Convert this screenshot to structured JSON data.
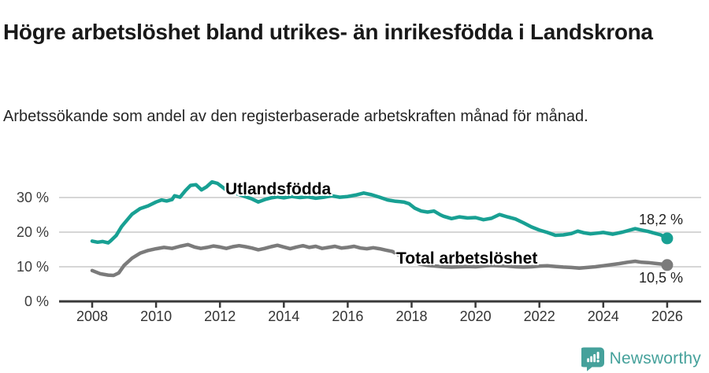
{
  "colors": {
    "series_foreign": "#18a093",
    "series_total": "#7b7b7b",
    "gridline": "#d6d6d6",
    "axis": "#3a3a3a",
    "brand_teal": "#45a19b",
    "title_text": "#191919"
  },
  "footer": {
    "brand": "Newsworthy",
    "logo_icon": "newsworthy-speech-bubble-bar-chart-icon"
  },
  "chart_data": {
    "type": "line",
    "title": "Högre arbetslöshet bland utrikes- än inrikesfödda i Landskrona",
    "subtitle": "Arbetssökande som andel av den registerbaserade arbetskraften månad för månad.",
    "grid": "horizontal-only",
    "xlim": [
      2007.66,
      2026.9
    ],
    "ylim": [
      0,
      36
    ],
    "x_axis": {
      "values": [
        2008,
        2010,
        2012,
        2014,
        2016,
        2018,
        2020,
        2022,
        2024,
        2026
      ],
      "labels": [
        "2008",
        "2010",
        "2012",
        "2014",
        "2016",
        "2018",
        "2020",
        "2022",
        "2024",
        "2026"
      ]
    },
    "y_axis": {
      "values": [
        0,
        10,
        20,
        30
      ],
      "labels": [
        "0 %",
        "10 %",
        "20 %",
        "30 %"
      ]
    },
    "series": [
      {
        "name": "Utlandsfödda",
        "color": "#18a093",
        "end_label": "18,2 %",
        "end_value": 18.2,
        "points": [
          [
            2008.0,
            17.4
          ],
          [
            2008.17,
            17.1
          ],
          [
            2008.33,
            17.3
          ],
          [
            2008.5,
            16.9
          ],
          [
            2008.58,
            17.5
          ],
          [
            2008.75,
            19.0
          ],
          [
            2008.92,
            21.6
          ],
          [
            2009.0,
            22.5
          ],
          [
            2009.25,
            25.2
          ],
          [
            2009.5,
            26.8
          ],
          [
            2009.75,
            27.6
          ],
          [
            2010.0,
            28.7
          ],
          [
            2010.17,
            29.3
          ],
          [
            2010.33,
            29.0
          ],
          [
            2010.5,
            29.4
          ],
          [
            2010.58,
            30.5
          ],
          [
            2010.75,
            30.1
          ],
          [
            2010.92,
            32.0
          ],
          [
            2011.08,
            33.5
          ],
          [
            2011.25,
            33.7
          ],
          [
            2011.42,
            32.2
          ],
          [
            2011.58,
            33.1
          ],
          [
            2011.75,
            34.5
          ],
          [
            2011.92,
            34.1
          ],
          [
            2012.08,
            33.0
          ],
          [
            2012.25,
            31.8
          ],
          [
            2012.5,
            31.2
          ],
          [
            2012.75,
            30.4
          ],
          [
            2013.0,
            29.6
          ],
          [
            2013.2,
            28.7
          ],
          [
            2013.4,
            29.4
          ],
          [
            2013.6,
            29.9
          ],
          [
            2013.8,
            30.2
          ],
          [
            2014.0,
            29.9
          ],
          [
            2014.25,
            30.3
          ],
          [
            2014.5,
            30.0
          ],
          [
            2014.75,
            30.2
          ],
          [
            2015.0,
            29.8
          ],
          [
            2015.25,
            30.1
          ],
          [
            2015.5,
            30.5
          ],
          [
            2015.75,
            30.1
          ],
          [
            2016.0,
            30.3
          ],
          [
            2016.25,
            30.7
          ],
          [
            2016.5,
            31.3
          ],
          [
            2016.75,
            30.8
          ],
          [
            2017.0,
            30.1
          ],
          [
            2017.25,
            29.3
          ],
          [
            2017.5,
            28.9
          ],
          [
            2017.75,
            28.7
          ],
          [
            2017.92,
            28.2
          ],
          [
            2018.1,
            26.9
          ],
          [
            2018.3,
            26.1
          ],
          [
            2018.5,
            25.8
          ],
          [
            2018.7,
            26.1
          ],
          [
            2018.9,
            25.0
          ],
          [
            2019.0,
            24.6
          ],
          [
            2019.25,
            23.9
          ],
          [
            2019.5,
            24.4
          ],
          [
            2019.75,
            24.1
          ],
          [
            2020.0,
            24.2
          ],
          [
            2020.25,
            23.6
          ],
          [
            2020.5,
            24.0
          ],
          [
            2020.75,
            25.1
          ],
          [
            2021.0,
            24.4
          ],
          [
            2021.25,
            23.8
          ],
          [
            2021.5,
            22.7
          ],
          [
            2021.75,
            21.5
          ],
          [
            2022.0,
            20.6
          ],
          [
            2022.25,
            19.9
          ],
          [
            2022.5,
            19.1
          ],
          [
            2022.75,
            19.2
          ],
          [
            2023.0,
            19.6
          ],
          [
            2023.2,
            20.3
          ],
          [
            2023.4,
            19.8
          ],
          [
            2023.6,
            19.5
          ],
          [
            2023.8,
            19.7
          ],
          [
            2024.0,
            19.9
          ],
          [
            2024.3,
            19.4
          ],
          [
            2024.6,
            20.0
          ],
          [
            2024.8,
            20.5
          ],
          [
            2025.0,
            21.0
          ],
          [
            2025.2,
            20.6
          ],
          [
            2025.4,
            20.2
          ],
          [
            2025.6,
            19.7
          ],
          [
            2025.8,
            19.2
          ],
          [
            2026.0,
            18.2
          ]
        ]
      },
      {
        "name": "Total arbetslöshet",
        "color": "#7b7b7b",
        "end_label": "10,5 %",
        "end_value": 10.5,
        "points": [
          [
            2008.0,
            8.9
          ],
          [
            2008.25,
            8.0
          ],
          [
            2008.5,
            7.6
          ],
          [
            2008.67,
            7.5
          ],
          [
            2008.83,
            8.2
          ],
          [
            2009.0,
            10.4
          ],
          [
            2009.25,
            12.5
          ],
          [
            2009.5,
            13.9
          ],
          [
            2009.75,
            14.7
          ],
          [
            2010.0,
            15.2
          ],
          [
            2010.25,
            15.6
          ],
          [
            2010.5,
            15.3
          ],
          [
            2010.75,
            15.9
          ],
          [
            2011.0,
            16.4
          ],
          [
            2011.2,
            15.7
          ],
          [
            2011.4,
            15.3
          ],
          [
            2011.6,
            15.6
          ],
          [
            2011.8,
            16.0
          ],
          [
            2012.0,
            15.7
          ],
          [
            2012.2,
            15.3
          ],
          [
            2012.4,
            15.8
          ],
          [
            2012.6,
            16.1
          ],
          [
            2012.8,
            15.8
          ],
          [
            2013.0,
            15.4
          ],
          [
            2013.2,
            14.9
          ],
          [
            2013.4,
            15.3
          ],
          [
            2013.6,
            15.8
          ],
          [
            2013.8,
            16.2
          ],
          [
            2014.0,
            15.7
          ],
          [
            2014.2,
            15.2
          ],
          [
            2014.4,
            15.7
          ],
          [
            2014.6,
            16.1
          ],
          [
            2014.8,
            15.6
          ],
          [
            2015.0,
            15.9
          ],
          [
            2015.2,
            15.3
          ],
          [
            2015.4,
            15.6
          ],
          [
            2015.6,
            15.9
          ],
          [
            2015.8,
            15.4
          ],
          [
            2016.0,
            15.6
          ],
          [
            2016.2,
            15.9
          ],
          [
            2016.4,
            15.4
          ],
          [
            2016.6,
            15.2
          ],
          [
            2016.8,
            15.5
          ],
          [
            2017.0,
            15.2
          ],
          [
            2017.2,
            14.8
          ],
          [
            2017.4,
            14.4
          ],
          [
            2017.6,
            13.4
          ],
          [
            2017.8,
            12.4
          ],
          [
            2018.0,
            11.5
          ],
          [
            2018.25,
            10.8
          ],
          [
            2018.5,
            10.4
          ],
          [
            2018.75,
            10.2
          ],
          [
            2019.0,
            10.0
          ],
          [
            2019.25,
            9.9
          ],
          [
            2019.5,
            10.0
          ],
          [
            2019.75,
            10.1
          ],
          [
            2020.0,
            10.0
          ],
          [
            2020.25,
            10.2
          ],
          [
            2020.5,
            10.4
          ],
          [
            2020.75,
            10.3
          ],
          [
            2021.0,
            10.2
          ],
          [
            2021.25,
            10.0
          ],
          [
            2021.5,
            9.9
          ],
          [
            2021.75,
            10.0
          ],
          [
            2022.0,
            10.2
          ],
          [
            2022.25,
            10.3
          ],
          [
            2022.5,
            10.1
          ],
          [
            2022.75,
            9.9
          ],
          [
            2023.0,
            9.8
          ],
          [
            2023.25,
            9.6
          ],
          [
            2023.5,
            9.8
          ],
          [
            2023.75,
            10.0
          ],
          [
            2024.0,
            10.3
          ],
          [
            2024.25,
            10.6
          ],
          [
            2024.5,
            10.9
          ],
          [
            2024.75,
            11.3
          ],
          [
            2025.0,
            11.6
          ],
          [
            2025.2,
            11.3
          ],
          [
            2025.4,
            11.2
          ],
          [
            2025.6,
            11.0
          ],
          [
            2025.8,
            10.8
          ],
          [
            2026.0,
            10.5
          ]
        ]
      }
    ]
  }
}
